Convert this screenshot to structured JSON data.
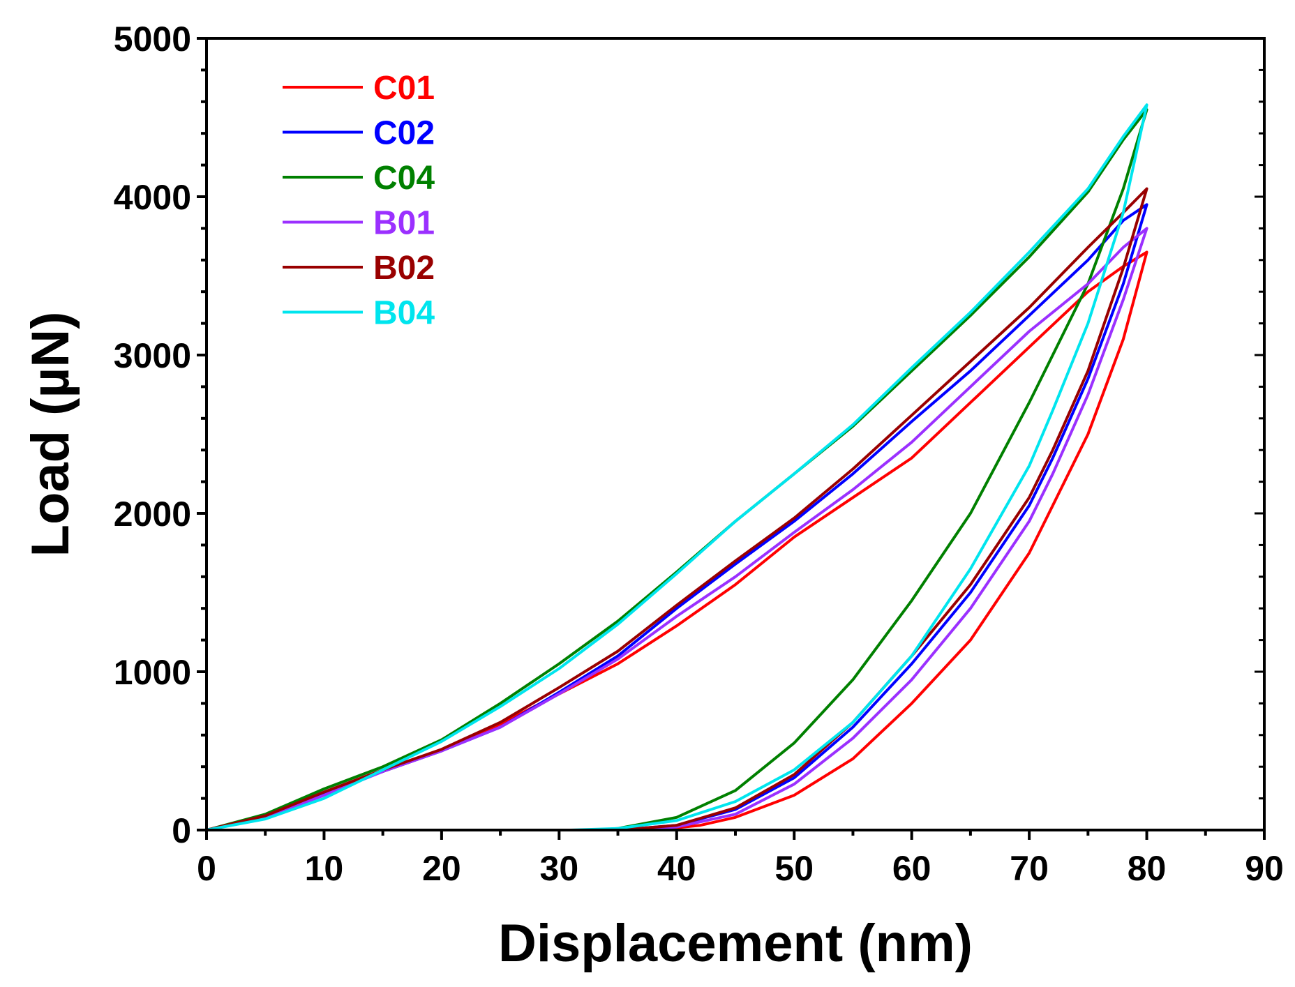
{
  "chart_data": {
    "type": "line",
    "title": "",
    "xlabel": "Displacement (nm)",
    "ylabel": "Load (µN)",
    "xlim": [
      0,
      90
    ],
    "ylim": [
      0,
      5000
    ],
    "xticks": [
      "0",
      "10",
      "20",
      "30",
      "40",
      "50",
      "60",
      "70",
      "80",
      "90"
    ],
    "yticks": [
      "0",
      "1000",
      "2000",
      "3000",
      "4000",
      "5000"
    ],
    "grid": false,
    "legend_position": "top-left",
    "series": [
      {
        "name": "C01",
        "color": "#ff0000",
        "loading": [
          [
            0,
            0
          ],
          [
            5,
            80
          ],
          [
            10,
            230
          ],
          [
            15,
            370
          ],
          [
            20,
            500
          ],
          [
            25,
            670
          ],
          [
            30,
            860
          ],
          [
            35,
            1050
          ],
          [
            40,
            1290
          ],
          [
            45,
            1550
          ],
          [
            50,
            1850
          ],
          [
            55,
            2100
          ],
          [
            60,
            2350
          ],
          [
            65,
            2700
          ],
          [
            70,
            3050
          ],
          [
            75,
            3400
          ],
          [
            78,
            3560
          ],
          [
            80,
            3650
          ]
        ],
        "unloading": [
          [
            80,
            3650
          ],
          [
            78,
            3100
          ],
          [
            75,
            2500
          ],
          [
            72,
            2050
          ],
          [
            70,
            1750
          ],
          [
            65,
            1200
          ],
          [
            60,
            800
          ],
          [
            55,
            450
          ],
          [
            50,
            220
          ],
          [
            45,
            80
          ],
          [
            42,
            30
          ],
          [
            38,
            0
          ],
          [
            0,
            0
          ]
        ]
      },
      {
        "name": "C02",
        "color": "#0000ff",
        "loading": [
          [
            0,
            0
          ],
          [
            5,
            80
          ],
          [
            10,
            230
          ],
          [
            15,
            370
          ],
          [
            20,
            500
          ],
          [
            25,
            650
          ],
          [
            30,
            870
          ],
          [
            35,
            1100
          ],
          [
            40,
            1400
          ],
          [
            45,
            1680
          ],
          [
            50,
            1950
          ],
          [
            55,
            2250
          ],
          [
            60,
            2580
          ],
          [
            65,
            2900
          ],
          [
            70,
            3250
          ],
          [
            75,
            3600
          ],
          [
            78,
            3850
          ],
          [
            80,
            3950
          ]
        ],
        "unloading": [
          [
            80,
            3950
          ],
          [
            78,
            3450
          ],
          [
            75,
            2850
          ],
          [
            72,
            2350
          ],
          [
            70,
            2050
          ],
          [
            65,
            1500
          ],
          [
            60,
            1050
          ],
          [
            55,
            650
          ],
          [
            50,
            330
          ],
          [
            45,
            130
          ],
          [
            40,
            30
          ],
          [
            35,
            0
          ],
          [
            0,
            0
          ]
        ]
      },
      {
        "name": "C04",
        "color": "#008000",
        "loading": [
          [
            0,
            0
          ],
          [
            5,
            100
          ],
          [
            10,
            260
          ],
          [
            15,
            400
          ],
          [
            20,
            570
          ],
          [
            25,
            800
          ],
          [
            30,
            1050
          ],
          [
            35,
            1320
          ],
          [
            40,
            1630
          ],
          [
            45,
            1950
          ],
          [
            50,
            2250
          ],
          [
            55,
            2550
          ],
          [
            60,
            2900
          ],
          [
            65,
            3250
          ],
          [
            70,
            3620
          ],
          [
            75,
            4030
          ],
          [
            78,
            4360
          ],
          [
            80,
            4550
          ]
        ],
        "unloading": [
          [
            80,
            4550
          ],
          [
            78,
            4050
          ],
          [
            75,
            3450
          ],
          [
            72,
            3000
          ],
          [
            70,
            2700
          ],
          [
            65,
            2000
          ],
          [
            60,
            1450
          ],
          [
            55,
            950
          ],
          [
            50,
            550
          ],
          [
            45,
            250
          ],
          [
            40,
            80
          ],
          [
            35,
            10
          ],
          [
            33,
            0
          ],
          [
            0,
            0
          ]
        ]
      },
      {
        "name": "B01",
        "color": "#9b30ff",
        "loading": [
          [
            0,
            0
          ],
          [
            5,
            80
          ],
          [
            10,
            220
          ],
          [
            15,
            370
          ],
          [
            20,
            500
          ],
          [
            25,
            650
          ],
          [
            30,
            860
          ],
          [
            35,
            1080
          ],
          [
            40,
            1350
          ],
          [
            45,
            1600
          ],
          [
            50,
            1880
          ],
          [
            55,
            2150
          ],
          [
            60,
            2450
          ],
          [
            65,
            2800
          ],
          [
            70,
            3150
          ],
          [
            75,
            3450
          ],
          [
            78,
            3680
          ],
          [
            80,
            3800
          ]
        ],
        "unloading": [
          [
            80,
            3800
          ],
          [
            78,
            3350
          ],
          [
            75,
            2750
          ],
          [
            72,
            2250
          ],
          [
            70,
            1950
          ],
          [
            65,
            1400
          ],
          [
            60,
            950
          ],
          [
            55,
            580
          ],
          [
            50,
            290
          ],
          [
            45,
            100
          ],
          [
            40,
            20
          ],
          [
            36,
            0
          ],
          [
            0,
            0
          ]
        ]
      },
      {
        "name": "B02",
        "color": "#990000",
        "loading": [
          [
            0,
            0
          ],
          [
            5,
            90
          ],
          [
            10,
            240
          ],
          [
            15,
            380
          ],
          [
            20,
            510
          ],
          [
            25,
            680
          ],
          [
            30,
            900
          ],
          [
            35,
            1130
          ],
          [
            40,
            1420
          ],
          [
            45,
            1700
          ],
          [
            50,
            1970
          ],
          [
            55,
            2280
          ],
          [
            60,
            2620
          ],
          [
            65,
            2960
          ],
          [
            70,
            3300
          ],
          [
            75,
            3680
          ],
          [
            78,
            3900
          ],
          [
            80,
            4050
          ]
        ],
        "unloading": [
          [
            80,
            4050
          ],
          [
            78,
            3550
          ],
          [
            75,
            2900
          ],
          [
            72,
            2400
          ],
          [
            70,
            2100
          ],
          [
            65,
            1550
          ],
          [
            60,
            1100
          ],
          [
            55,
            680
          ],
          [
            50,
            350
          ],
          [
            45,
            140
          ],
          [
            40,
            30
          ],
          [
            35,
            0
          ],
          [
            0,
            0
          ]
        ]
      },
      {
        "name": "B04",
        "color": "#00e5ee",
        "loading": [
          [
            0,
            0
          ],
          [
            5,
            70
          ],
          [
            10,
            200
          ],
          [
            15,
            380
          ],
          [
            20,
            560
          ],
          [
            25,
            780
          ],
          [
            30,
            1020
          ],
          [
            35,
            1300
          ],
          [
            40,
            1620
          ],
          [
            45,
            1950
          ],
          [
            50,
            2250
          ],
          [
            55,
            2560
          ],
          [
            60,
            2920
          ],
          [
            65,
            3270
          ],
          [
            70,
            3650
          ],
          [
            75,
            4050
          ],
          [
            78,
            4380
          ],
          [
            80,
            4580
          ]
        ],
        "unloading": [
          [
            80,
            4580
          ],
          [
            78,
            3900
          ],
          [
            75,
            3200
          ],
          [
            72,
            2650
          ],
          [
            70,
            2300
          ],
          [
            65,
            1650
          ],
          [
            60,
            1100
          ],
          [
            55,
            680
          ],
          [
            50,
            380
          ],
          [
            45,
            180
          ],
          [
            40,
            60
          ],
          [
            35,
            10
          ],
          [
            31,
            0
          ],
          [
            0,
            0
          ]
        ]
      }
    ]
  }
}
